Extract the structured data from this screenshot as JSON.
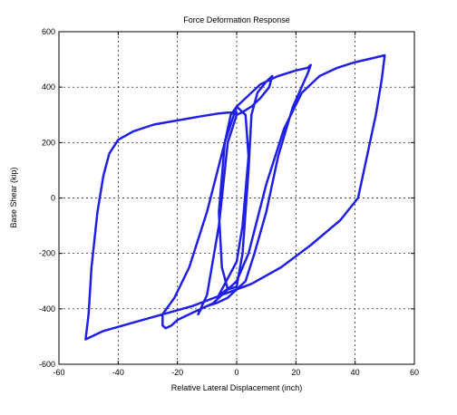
{
  "chart_data": {
    "type": "line",
    "title": "Force Deformation Response",
    "xlabel": "Relative Lateral Displacement (inch)",
    "ylabel": "Base Shear (kip)",
    "xlim": [
      -60,
      60
    ],
    "ylim": [
      -600,
      600
    ],
    "xticks": [
      -60,
      -40,
      -20,
      0,
      20,
      40,
      60
    ],
    "yticks": [
      -600,
      -400,
      -200,
      0,
      200,
      400,
      600
    ],
    "xtick_labels": [
      "-60",
      "-40",
      "-20",
      "0",
      "20",
      "40",
      "60"
    ],
    "ytick_labels": [
      "-600",
      "-400",
      "-200",
      "0",
      "200",
      "400",
      "600"
    ],
    "grid": true,
    "grid_style": "dashed",
    "line_color": "#1f1fe6",
    "series": [
      {
        "x": [
          0,
          -2,
          -4,
          -5,
          -6,
          -5,
          -3,
          0,
          2,
          4,
          3,
          0,
          -2,
          -4,
          -6,
          -5,
          -3,
          0,
          2,
          4,
          5,
          7,
          10,
          12,
          11,
          8,
          5,
          2,
          0,
          -3,
          -6,
          -10,
          -13,
          -12,
          -10,
          -7,
          -3,
          0,
          3,
          6,
          10,
          14,
          19,
          24,
          25,
          24,
          20,
          14,
          8,
          3,
          0,
          -4,
          -10,
          -16,
          -21,
          -25,
          -25,
          -24,
          -22,
          -20,
          -16,
          -12,
          -8,
          -4,
          0,
          4,
          10,
          16,
          22,
          28,
          34,
          40,
          46,
          50,
          49,
          47,
          44,
          41,
          35,
          25,
          15,
          5,
          -5,
          -15,
          -25,
          -35,
          -45,
          -51,
          -50,
          -49,
          -47,
          -45,
          -43,
          -40,
          -35,
          -28,
          -20,
          -12,
          -6,
          -3,
          0,
          -1
        ],
        "y": [
          -300,
          -320,
          -335,
          -345,
          -350,
          -330,
          -290,
          -230,
          -100,
          150,
          300,
          330,
          300,
          200,
          -50,
          -250,
          -330,
          -320,
          -200,
          100,
          300,
          380,
          420,
          440,
          400,
          360,
          330,
          310,
          300,
          200,
          -100,
          -350,
          -420,
          -400,
          -390,
          -380,
          -360,
          -330,
          -300,
          -200,
          -50,
          150,
          330,
          450,
          480,
          470,
          460,
          440,
          410,
          360,
          330,
          200,
          -50,
          -250,
          -360,
          -420,
          -460,
          -470,
          -460,
          -440,
          -420,
          -400,
          -380,
          -340,
          -300,
          -200,
          50,
          250,
          380,
          440,
          470,
          490,
          505,
          515,
          430,
          300,
          150,
          0,
          -80,
          -170,
          -250,
          -310,
          -350,
          -390,
          -420,
          -450,
          -480,
          -510,
          -420,
          -250,
          -50,
          80,
          160,
          210,
          240,
          265,
          280,
          295,
          305,
          308,
          310,
          300
        ]
      }
    ]
  }
}
